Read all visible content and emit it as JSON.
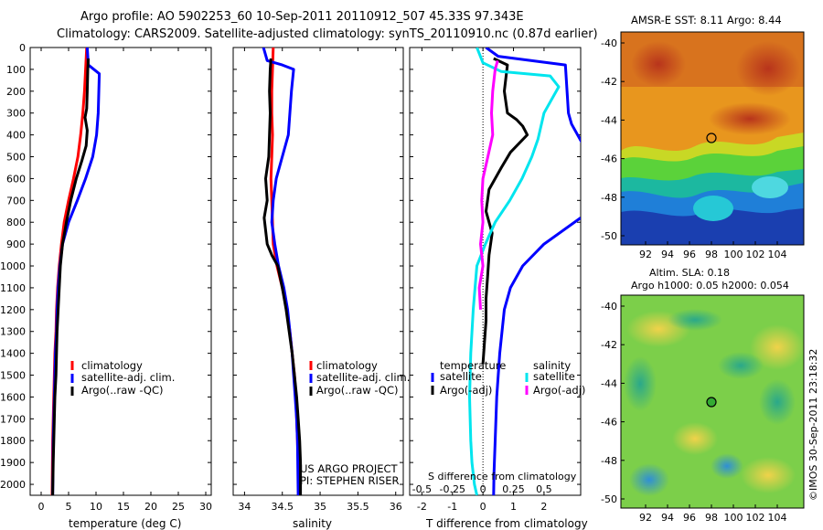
{
  "header": {
    "line1": "Argo profile: AO 5902253_60 10-Sep-2011 20110912_507 45.33S 97.343E",
    "line2": "Climatology: CARS2009. Satellite-adjusted climatology: synTS_20110910.nc (0.87d earlier)"
  },
  "legend": {
    "climatology": "climatology",
    "satellite": "satellite-adj. clim.",
    "argo": "Argo(..raw -QC)",
    "temperature": "temperature",
    "salinity": "salinity",
    "sat_short": "satellite",
    "argo_adj": "Argo(-adj)"
  },
  "credits": {
    "project": "US ARGO PROJECT",
    "pi": "PI: STEPHEN RISER",
    "watermark": "©IMOS 30-Sep-2011 23:18:32"
  },
  "maps": {
    "sst_title": "AMSR-E SST: 8.11 Argo: 8.44",
    "sla_title1": "Altim. SLA: 0.18",
    "sla_title2": "Argo h1000: 0.05 h2000: 0.054",
    "lat_ticks": [
      "-40",
      "-42",
      "-44",
      "-46",
      "-48",
      "-50"
    ],
    "lon_ticks": [
      "92",
      "94",
      "96",
      "98",
      "100",
      "102",
      "104"
    ],
    "argo_position": {
      "lon": 97.343,
      "lat": -45.33
    }
  },
  "colors": {
    "climatology": "#ff0000",
    "satellite": "#0000ff",
    "argo": "#000000",
    "sat_salinity": "#00e5ee",
    "argo_salinity": "#ff00ff"
  },
  "chart_data": [
    {
      "type": "line",
      "xlabel": "temperature (deg C)",
      "ylabel": "",
      "xlim": [
        -2,
        31
      ],
      "ylim": [
        2050,
        0
      ],
      "xticks": [
        0,
        5,
        10,
        15,
        20,
        25,
        30
      ],
      "xtick_labels": [
        "0",
        "5",
        "10",
        "15",
        "20",
        "25",
        "30"
      ],
      "yticks": [
        0,
        100,
        200,
        300,
        400,
        500,
        600,
        700,
        800,
        900,
        1000,
        1100,
        1200,
        1300,
        1400,
        1500,
        1600,
        1700,
        1800,
        1900,
        2000
      ],
      "ytick_labels": [
        "0",
        "100",
        "200",
        "300",
        "400",
        "500",
        "600",
        "700",
        "800",
        "900",
        "1000",
        "1100",
        "1200",
        "1300",
        "1400",
        "1500",
        "1600",
        "1700",
        "1800",
        "1900",
        "2000"
      ],
      "series": [
        {
          "name": "climatology",
          "color": "#ff0000",
          "x": [
            8.3,
            8.1,
            7.9,
            7.6,
            7.2,
            6.7,
            5.9,
            5.0,
            4.2,
            3.7,
            3.3,
            3.0,
            2.8,
            2.7,
            2.5,
            2.4,
            2.3,
            2.2,
            2.1,
            2.0
          ],
          "y": [
            0,
            100,
            200,
            300,
            400,
            500,
            600,
            700,
            800,
            900,
            1000,
            1100,
            1200,
            1300,
            1400,
            1500,
            1600,
            1700,
            1800,
            2050
          ]
        },
        {
          "name": "satellite-adj. clim.",
          "color": "#0000ff",
          "x": [
            8.4,
            8.6,
            10.6,
            10.4,
            10.1,
            9.4,
            8.1,
            6.6,
            5.0,
            3.9,
            3.4,
            3.1,
            2.9,
            2.8,
            2.6,
            2.5,
            2.4,
            2.3,
            2.2,
            2.1
          ],
          "y": [
            0,
            80,
            120,
            300,
            400,
            500,
            600,
            700,
            800,
            900,
            1000,
            1100,
            1200,
            1300,
            1400,
            1500,
            1600,
            1700,
            1800,
            2050
          ]
        },
        {
          "name": "Argo(..raw -QC)",
          "color": "#000000",
          "x": [
            8.6,
            8.5,
            8.4,
            8.3,
            8.0,
            8.4,
            8.2,
            7.4,
            6.4,
            5.4,
            4.6,
            3.9,
            3.5,
            3.3,
            3.1,
            2.9,
            2.8,
            2.7,
            2.5,
            2.4,
            2.3,
            2.2,
            2.1
          ],
          "y": [
            50,
            100,
            200,
            280,
            320,
            380,
            450,
            520,
            600,
            700,
            800,
            900,
            1000,
            1100,
            1200,
            1300,
            1400,
            1500,
            1600,
            1700,
            1800,
            1900,
            2050
          ]
        }
      ]
    },
    {
      "type": "line",
      "xlabel": "salinity",
      "ylabel": "",
      "xlim": [
        33.85,
        36.1
      ],
      "ylim": [
        2050,
        0
      ],
      "xticks": [
        34,
        34.5,
        35,
        35.5,
        36
      ],
      "xtick_labels": [
        "34",
        "34.5",
        "35",
        "35.5",
        "36"
      ],
      "series": [
        {
          "name": "climatology",
          "color": "#ff0000",
          "x": [
            34.38,
            34.37,
            34.36,
            34.36,
            34.37,
            34.36,
            34.35,
            34.36,
            34.37,
            34.38,
            34.43,
            34.5,
            34.56,
            34.6,
            34.63,
            34.66,
            34.68,
            34.69,
            34.7,
            34.71,
            34.72
          ],
          "y": [
            0,
            100,
            200,
            300,
            400,
            500,
            600,
            700,
            800,
            900,
            1000,
            1100,
            1200,
            1300,
            1400,
            1500,
            1600,
            1700,
            1800,
            1900,
            2050
          ]
        },
        {
          "name": "satellite-adj. clim.",
          "color": "#0000ff",
          "x": [
            34.25,
            34.3,
            34.5,
            34.65,
            34.62,
            34.6,
            34.58,
            34.5,
            34.42,
            34.38,
            34.36,
            34.4,
            34.45,
            34.52,
            34.57,
            34.6,
            34.63,
            34.65,
            34.67,
            34.69,
            34.7,
            34.71
          ],
          "y": [
            0,
            60,
            80,
            100,
            200,
            300,
            400,
            500,
            600,
            700,
            800,
            900,
            1000,
            1100,
            1200,
            1300,
            1400,
            1500,
            1600,
            1700,
            1800,
            2050
          ]
        },
        {
          "name": "Argo(..raw -QC)",
          "color": "#000000",
          "x": [
            34.35,
            34.34,
            34.33,
            34.34,
            34.33,
            34.32,
            34.3,
            34.28,
            34.3,
            34.26,
            34.3,
            34.36,
            34.44,
            34.5,
            34.55,
            34.59,
            34.63,
            34.66,
            34.69,
            34.71,
            34.73,
            34.74,
            34.74
          ],
          "y": [
            50,
            100,
            200,
            300,
            400,
            500,
            550,
            600,
            700,
            780,
            900,
            950,
            1000,
            1100,
            1200,
            1300,
            1400,
            1500,
            1600,
            1700,
            1800,
            1900,
            2050
          ]
        }
      ]
    },
    {
      "type": "line",
      "xlabel": "T difference from climatology",
      "x2label": "S difference from climatology",
      "xlim": [
        -2.4,
        3.2
      ],
      "x2lim": [
        -0.6,
        0.8
      ],
      "ylim": [
        2050,
        0
      ],
      "xticks": [
        -2,
        -1,
        0,
        1,
        2
      ],
      "xtick_labels": [
        "-2",
        "-1",
        "0",
        "1",
        "2"
      ],
      "x2ticks": [
        -0.5,
        -0.25,
        0,
        0.25,
        0.5
      ],
      "x2tick_labels": [
        "-0.5",
        "-0.25",
        "0",
        "0.25",
        "0.5"
      ],
      "series": [
        {
          "name": "temperature satellite",
          "color": "#0000ff",
          "axis": "T",
          "x": [
            0.1,
            0.5,
            2.7,
            2.8,
            2.9,
            3.3,
            3.6,
            3.9
          ],
          "y": [
            0,
            40,
            80,
            300,
            350,
            450,
            600,
            680
          ]
        },
        {
          "name": "temperature satellite (lower)",
          "color": "#0000ff",
          "axis": "T",
          "x": [
            3.2,
            2.0,
            1.3,
            0.9,
            0.7,
            0.55,
            0.45,
            0.4,
            0.36,
            0.35
          ],
          "y": [
            780,
            900,
            1000,
            1100,
            1200,
            1400,
            1600,
            1800,
            1950,
            2050
          ]
        },
        {
          "name": "temperature Argo(-adj)",
          "color": "#000000",
          "axis": "T",
          "x": [
            0.35,
            0.8,
            0.7,
            0.8,
            1.1,
            1.3,
            1.45,
            0.9,
            0.6,
            0.2,
            0.1,
            0.3,
            0.2,
            0.15,
            0.1,
            0.1,
            0.05,
            0.0
          ],
          "y": [
            50,
            80,
            200,
            300,
            330,
            360,
            400,
            480,
            550,
            650,
            750,
            850,
            950,
            1050,
            1150,
            1250,
            1350,
            1450
          ]
        },
        {
          "name": "salinity satellite",
          "color": "#00e5ee",
          "axis": "S",
          "x": [
            -0.05,
            0.0,
            0.15,
            0.55,
            0.62,
            0.5,
            0.45,
            0.4,
            0.32,
            0.22,
            0.1,
            0.02,
            -0.05,
            -0.08,
            -0.1,
            -0.11,
            -0.1,
            -0.09,
            -0.07,
            -0.05
          ],
          "y": [
            0,
            70,
            110,
            130,
            180,
            300,
            420,
            500,
            600,
            700,
            800,
            900,
            1000,
            1200,
            1400,
            1600,
            1800,
            1900,
            2000,
            2050
          ]
        },
        {
          "name": "salinity Argo(-adj)",
          "color": "#ff00ff",
          "axis": "S",
          "x": [
            0.12,
            0.1,
            0.08,
            0.07,
            0.08,
            0.04,
            0.0,
            -0.01,
            0.0,
            -0.02,
            0.0,
            -0.03,
            -0.02
          ],
          "y": [
            60,
            100,
            200,
            300,
            400,
            500,
            600,
            700,
            800,
            900,
            1000,
            1100,
            1200
          ]
        }
      ]
    }
  ]
}
